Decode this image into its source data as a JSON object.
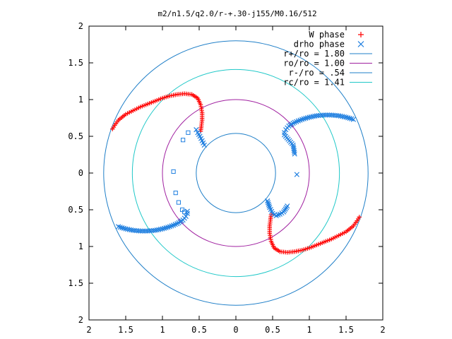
{
  "chart_data": {
    "type": "scatter",
    "title": "m2/n1.5/q2.0/r-+.30-j155/M0.16/512",
    "xlim": [
      -2,
      2
    ],
    "ylim": [
      -2,
      2
    ],
    "x_ticks": [
      -2,
      -1.5,
      -1,
      -0.5,
      0,
      0.5,
      1,
      1.5,
      2
    ],
    "y_ticks": [
      -2,
      -1.5,
      -1,
      -0.5,
      0,
      0.5,
      1,
      1.5,
      2
    ],
    "x_tick_labels": [
      "2",
      "1.5",
      "1",
      "0.5",
      "0",
      "0.5",
      "1",
      "1.5",
      "2"
    ],
    "y_tick_labels": [
      "2",
      "1.5",
      "1",
      "0.5",
      "0",
      "0.5",
      "1",
      "1.5",
      "2"
    ],
    "grid": false,
    "legend_position": "top-right",
    "series": [
      {
        "name": "W phase",
        "marker": "plus",
        "color": "#ff0000",
        "x": [
          -1.68,
          -1.65,
          -1.6,
          -1.5,
          -1.4,
          -1.3,
          -1.2,
          -1.1,
          -1.0,
          -0.9,
          -0.8,
          -0.7,
          -0.6,
          -0.52,
          -0.48,
          -0.46,
          -0.46,
          -0.47,
          -0.48,
          1.68,
          1.65,
          1.6,
          1.5,
          1.4,
          1.3,
          1.2,
          1.1,
          1.0,
          0.9,
          0.8,
          0.7,
          0.6,
          0.52,
          0.48,
          0.46,
          0.46,
          0.47,
          0.48
        ],
        "y": [
          0.6,
          0.65,
          0.72,
          0.8,
          0.85,
          0.9,
          0.94,
          0.98,
          1.02,
          1.05,
          1.07,
          1.08,
          1.07,
          1.02,
          0.93,
          0.82,
          0.72,
          0.64,
          0.57,
          -0.6,
          -0.65,
          -0.72,
          -0.8,
          -0.85,
          -0.9,
          -0.94,
          -0.98,
          -1.02,
          -1.05,
          -1.07,
          -1.08,
          -1.07,
          -1.02,
          -0.93,
          -0.82,
          -0.72,
          -0.64,
          -0.57
        ]
      },
      {
        "name": "drho phase",
        "marker": "x",
        "color": "#1f7fe0",
        "x": [
          1.6,
          1.5,
          1.4,
          1.3,
          1.2,
          1.1,
          1.0,
          0.9,
          0.8,
          0.72,
          0.68,
          0.66,
          0.66,
          0.78,
          0.8,
          0.83,
          0.7,
          0.65,
          0.6,
          0.55,
          0.5,
          0.46,
          0.43,
          -1.6,
          -1.5,
          -1.4,
          -1.3,
          -1.2,
          -1.1,
          -1.0,
          -0.9,
          -0.8,
          -0.72,
          -0.68,
          -0.66,
          -0.66,
          -0.54,
          -0.52,
          -0.49,
          -0.46,
          -0.43
        ],
        "y": [
          0.73,
          0.76,
          0.78,
          0.79,
          0.79,
          0.78,
          0.76,
          0.73,
          0.69,
          0.64,
          0.59,
          0.55,
          0.52,
          0.38,
          0.26,
          -0.02,
          -0.45,
          -0.53,
          -0.56,
          -0.58,
          -0.55,
          -0.47,
          -0.38,
          -0.73,
          -0.76,
          -0.78,
          -0.79,
          -0.79,
          -0.78,
          -0.76,
          -0.73,
          -0.69,
          -0.64,
          -0.59,
          -0.55,
          -0.52,
          0.59,
          0.55,
          0.5,
          0.44,
          0.38
        ]
      },
      {
        "name": "",
        "marker": "open-square",
        "color": "#1f7fe0",
        "x": [
          -0.65,
          -0.72,
          -0.85,
          -0.82,
          -0.78,
          -0.73,
          -0.7
        ],
        "y": [
          0.55,
          0.45,
          0.02,
          -0.27,
          -0.4,
          -0.5,
          -0.53
        ]
      },
      {
        "name": "r+/ro = 1.80",
        "type": "circle",
        "radius": 1.8,
        "color": "#1f7fc8"
      },
      {
        "name": "ro/ro = 1.00",
        "type": "circle",
        "radius": 1.0,
        "color": "#a020a0"
      },
      {
        "name": "r-/ro = .54",
        "type": "circle",
        "radius": 0.54,
        "color": "#1f7fc8"
      },
      {
        "name": "rc/ro = 1.41",
        "type": "circle",
        "radius": 1.41,
        "color": "#20c8c8"
      }
    ]
  }
}
